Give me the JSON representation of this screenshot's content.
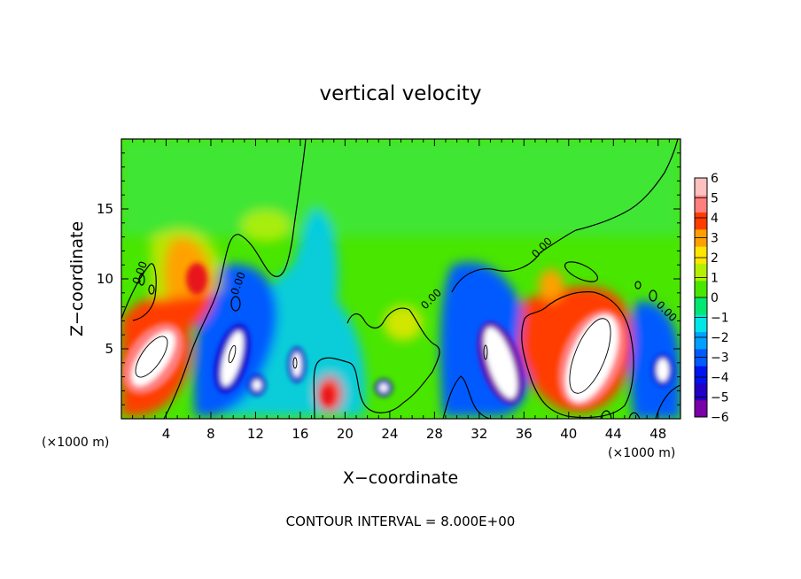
{
  "chart_data": {
    "type": "heatmap",
    "title": "vertical velocity",
    "xlabel": "X−coordinate",
    "ylabel": "Z−coordinate",
    "x_unit_left": "(×1000 m)",
    "x_unit_right": "(×1000 m)",
    "footer": "CONTOUR INTERVAL = 8.000E+00",
    "xlim": [
      0,
      50
    ],
    "ylim": [
      0,
      20
    ],
    "x_ticks": [
      4,
      8,
      12,
      16,
      20,
      24,
      28,
      32,
      36,
      40,
      44,
      48
    ],
    "y_ticks": [
      5,
      10,
      15
    ],
    "colorbar": {
      "levels": [
        -6,
        -5,
        -4,
        -3,
        -2,
        -1,
        0,
        1,
        2,
        3,
        4,
        5,
        6
      ],
      "labels": [
        "6",
        "5",
        "4",
        "3",
        "2",
        "1",
        "0",
        "−1",
        "−2",
        "−3",
        "−4",
        "−5",
        "−6"
      ],
      "colors": [
        "#7a00a8",
        "#2200c8",
        "#0014f0",
        "#005aff",
        "#00a0ff",
        "#00e6e6",
        "#00e873",
        "#49e600",
        "#b4f000",
        "#ffe600",
        "#ffa000",
        "#ff3c00",
        "#ff7f7f",
        "#ffc0c0"
      ]
    },
    "contour_labels": [
      "0.00",
      "0.00",
      "0.00",
      "0.00",
      "0.00"
    ],
    "features": [
      {
        "x": 5,
        "z": 4.5,
        "value": 8
      },
      {
        "x": 7,
        "z": 10,
        "value": 4
      },
      {
        "x": 10.5,
        "z": 4.5,
        "value": -8
      },
      {
        "x": 12,
        "z": 2.5,
        "value": -6
      },
      {
        "x": 15.5,
        "z": 3.8,
        "value": -7
      },
      {
        "x": 18.5,
        "z": 2,
        "value": 4
      },
      {
        "x": 23.5,
        "z": 2.3,
        "value": -6
      },
      {
        "x": 33.5,
        "z": 4.5,
        "value": -9
      },
      {
        "x": 41,
        "z": 5,
        "value": 5
      },
      {
        "x": 43,
        "z": 5,
        "value": 9
      },
      {
        "x": 48,
        "z": 3.5,
        "value": -7
      },
      {
        "x": 17.5,
        "z": 12,
        "value": -2
      }
    ]
  }
}
